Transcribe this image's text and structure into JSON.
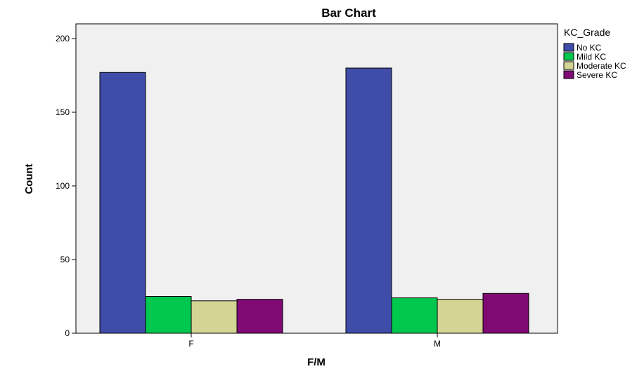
{
  "chart_data": {
    "type": "bar",
    "title": "Bar Chart",
    "xlabel": "F/M",
    "ylabel": "Count",
    "categories": [
      "F",
      "M"
    ],
    "ylim": [
      0,
      210
    ],
    "yticks": [
      0,
      50,
      100,
      150,
      200
    ],
    "grid": false,
    "legend": {
      "title": "KC_Grade",
      "placement": "right"
    },
    "series": [
      {
        "name": "No KC",
        "color": "#3F4CA8",
        "values": [
          177,
          180
        ]
      },
      {
        "name": "Mild KC",
        "color": "#00C84E",
        "values": [
          25,
          24
        ]
      },
      {
        "name": "Moderate KC",
        "color": "#D4D494",
        "values": [
          22,
          23
        ]
      },
      {
        "name": "Severe KC",
        "color": "#7F0A74",
        "values": [
          23,
          27
        ]
      }
    ],
    "colors": {
      "plot_background": "#F0F0F0",
      "axis": "#000000"
    }
  }
}
